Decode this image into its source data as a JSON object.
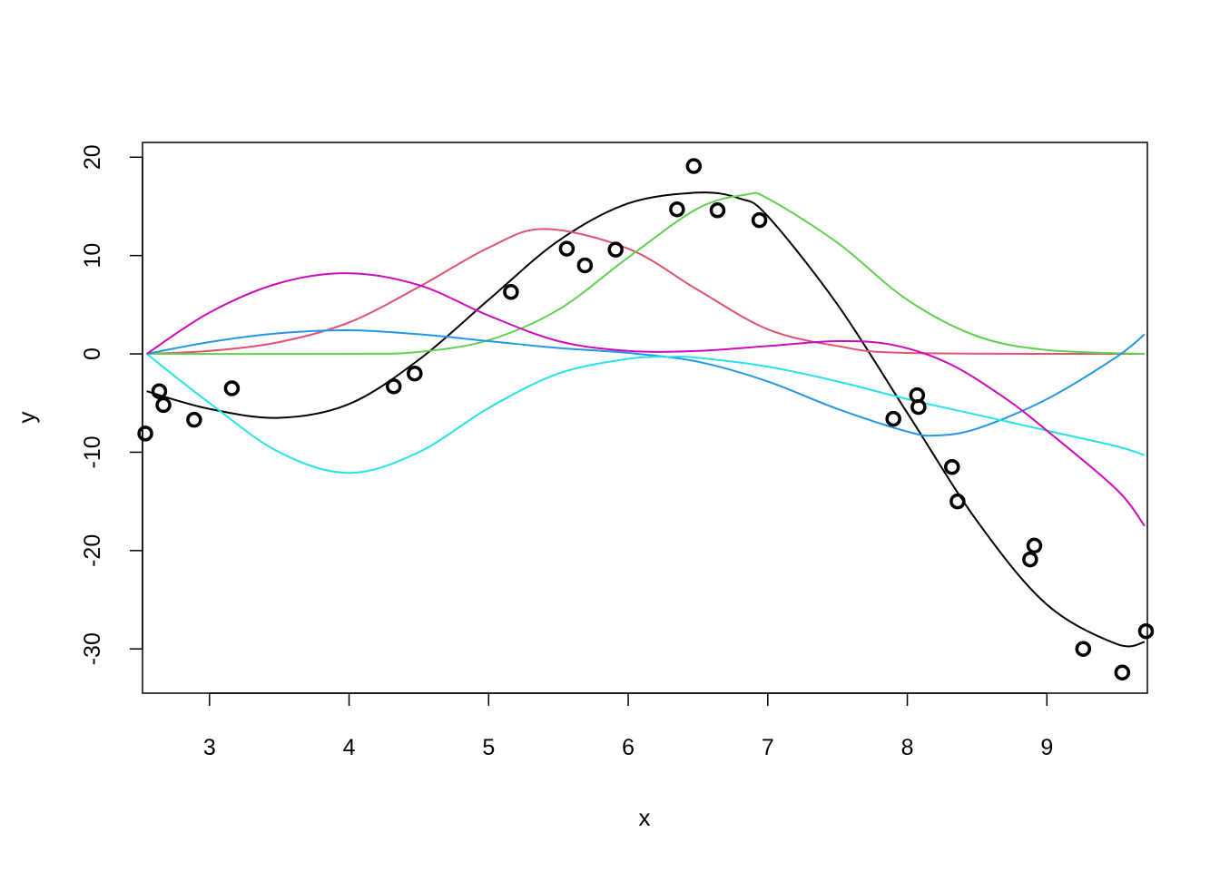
{
  "chart_data": {
    "type": "scatter",
    "title": "",
    "xlabel": "x",
    "ylabel": "y",
    "xlim": [
      2.52,
      9.72
    ],
    "ylim": [
      -34.5,
      21.5
    ],
    "grid": false,
    "legend": "none",
    "x_ticks": [
      3,
      4,
      5,
      6,
      7,
      8,
      9
    ],
    "y_ticks": [
      -30,
      -20,
      -10,
      0,
      10,
      20
    ],
    "points": {
      "color": "#000000",
      "x": [
        2.54,
        2.64,
        2.67,
        2.89,
        3.16,
        4.32,
        4.47,
        5.16,
        5.56,
        5.69,
        5.91,
        6.35,
        6.47,
        6.64,
        6.94,
        7.9,
        8.07,
        8.08,
        8.32,
        8.36,
        8.88,
        8.91,
        9.26,
        9.54,
        9.71
      ],
      "y": [
        -8.1,
        -3.8,
        -5.2,
        -6.7,
        -3.5,
        -3.3,
        -2.0,
        6.3,
        10.7,
        9.0,
        10.6,
        14.7,
        19.1,
        14.6,
        13.6,
        -6.6,
        -4.2,
        -5.4,
        -11.5,
        -15.0,
        -20.9,
        -19.5,
        -30.0,
        -32.4,
        -28.2
      ]
    },
    "series": [
      {
        "color": "#000000",
        "x": [
          2.55,
          3.0,
          3.5,
          4.0,
          4.5,
          5.0,
          5.5,
          6.0,
          6.5,
          6.8,
          7.0,
          7.5,
          8.0,
          8.5,
          9.0,
          9.5,
          9.7
        ],
        "y": [
          -3.8,
          -5.6,
          -6.5,
          -5.1,
          -0.6,
          5.5,
          11.5,
          15.3,
          16.4,
          15.8,
          14.0,
          5.0,
          -6.0,
          -17.0,
          -25.5,
          -29.5,
          -29.3
        ]
      },
      {
        "color": "#DF536B",
        "x": [
          2.55,
          3.0,
          3.5,
          4.0,
          4.5,
          5.0,
          5.4,
          6.0,
          6.5,
          7.0,
          7.5,
          8.0,
          9.7
        ],
        "y": [
          0.0,
          0.3,
          1.2,
          3.2,
          6.8,
          10.8,
          12.7,
          10.7,
          6.5,
          2.5,
          0.8,
          0.1,
          0.0
        ]
      },
      {
        "color": "#61D04F",
        "x": [
          2.55,
          4.0,
          4.5,
          5.0,
          5.5,
          6.0,
          6.5,
          6.85,
          7.0,
          7.5,
          8.0,
          8.5,
          9.0,
          9.7
        ],
        "y": [
          0.0,
          0.0,
          0.2,
          1.4,
          4.5,
          9.8,
          14.8,
          16.2,
          15.8,
          11.3,
          5.5,
          1.8,
          0.4,
          0.0
        ]
      },
      {
        "color": "#2297E6",
        "x": [
          2.55,
          3.0,
          3.5,
          4.0,
          4.5,
          5.0,
          5.5,
          6.0,
          6.5,
          7.0,
          7.5,
          8.0,
          8.2,
          8.5,
          9.0,
          9.5,
          9.7
        ],
        "y": [
          0.0,
          1.2,
          2.1,
          2.4,
          2.0,
          1.3,
          0.6,
          0.1,
          -0.8,
          -2.8,
          -5.6,
          -7.9,
          -8.3,
          -7.6,
          -4.6,
          -0.3,
          2.0
        ]
      },
      {
        "color": "#28E2E5",
        "x": [
          2.55,
          3.0,
          3.5,
          4.0,
          4.5,
          5.0,
          5.5,
          6.0,
          6.3,
          6.5,
          7.0,
          7.5,
          8.0,
          8.5,
          9.0,
          9.5,
          9.7
        ],
        "y": [
          0.0,
          -5.0,
          -10.0,
          -12.1,
          -10.0,
          -5.5,
          -2.0,
          -0.5,
          -0.3,
          -0.4,
          -1.3,
          -2.8,
          -4.6,
          -6.2,
          -7.8,
          -9.4,
          -10.3
        ]
      },
      {
        "color": "#CD0BBC",
        "x": [
          2.55,
          3.0,
          3.5,
          4.0,
          4.5,
          5.0,
          5.5,
          6.0,
          6.5,
          7.0,
          7.5,
          7.9,
          8.3,
          8.7,
          9.0,
          9.5,
          9.7
        ],
        "y": [
          0.0,
          4.2,
          7.2,
          8.2,
          7.0,
          3.9,
          1.3,
          0.3,
          0.3,
          0.8,
          1.3,
          0.9,
          -1.0,
          -4.5,
          -7.8,
          -13.8,
          -17.5
        ]
      }
    ]
  }
}
